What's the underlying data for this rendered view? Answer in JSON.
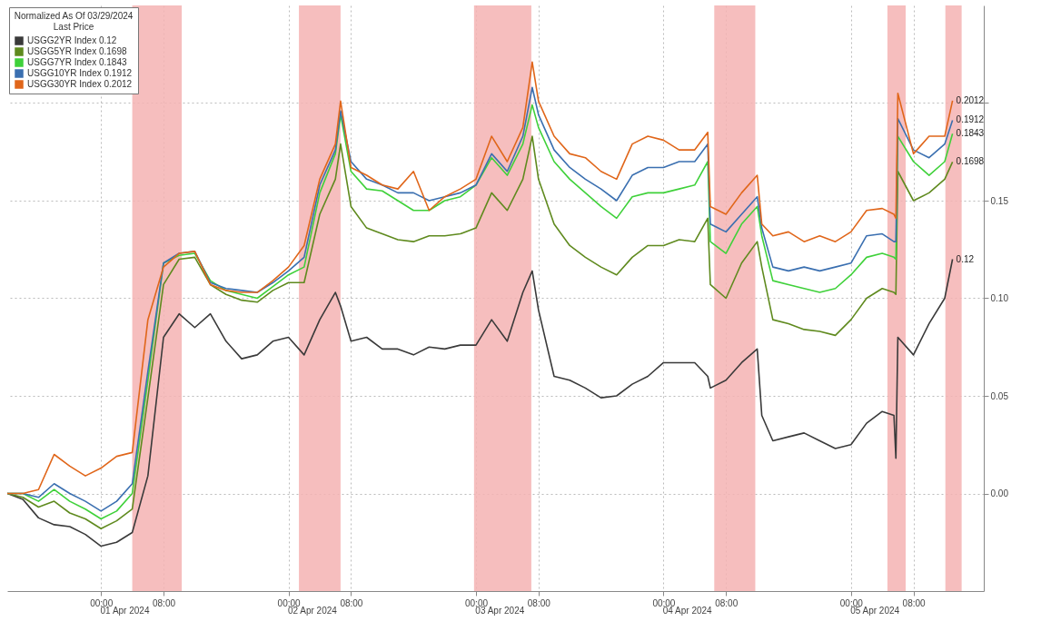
{
  "chart_data": {
    "type": "line",
    "legend_title": "Normalized As Of 03/29/2024\nLast Price",
    "legend": "top left",
    "grid": true,
    "x": [
      "2024-03-31T12:00",
      "2024-03-31T14:00",
      "2024-03-31T16:00",
      "2024-03-31T18:00",
      "2024-03-31T20:00",
      "2024-03-31T22:00",
      "2024-04-01T00:00",
      "2024-04-01T02:00",
      "2024-04-01T04:00",
      "2024-04-01T06:00",
      "2024-04-01T08:00",
      "2024-04-01T10:00",
      "2024-04-01T12:00",
      "2024-04-01T14:00",
      "2024-04-01T16:00",
      "2024-04-01T18:00",
      "2024-04-01T20:00",
      "2024-04-01T22:00",
      "2024-04-02T00:00",
      "2024-04-02T02:00",
      "2024-04-02T04:00",
      "2024-04-02T06:00",
      "2024-04-02T06:40",
      "2024-04-02T08:00",
      "2024-04-02T10:00",
      "2024-04-02T12:00",
      "2024-04-02T14:00",
      "2024-04-02T16:00",
      "2024-04-02T18:00",
      "2024-04-02T20:00",
      "2024-04-02T22:00",
      "2024-04-03T00:00",
      "2024-04-03T02:00",
      "2024-04-03T04:00",
      "2024-04-03T06:00",
      "2024-04-03T07:12",
      "2024-04-03T08:00",
      "2024-04-03T10:00",
      "2024-04-03T12:00",
      "2024-04-03T14:00",
      "2024-04-03T16:00",
      "2024-04-03T18:00",
      "2024-04-03T20:00",
      "2024-04-03T22:00",
      "2024-04-04T00:00",
      "2024-04-04T02:00",
      "2024-04-04T04:00",
      "2024-04-04T05:40",
      "2024-04-04T06:00",
      "2024-04-04T08:00",
      "2024-04-04T10:00",
      "2024-04-04T12:00",
      "2024-04-04T12:35",
      "2024-04-04T14:00",
      "2024-04-04T16:00",
      "2024-04-04T18:00",
      "2024-04-04T20:00",
      "2024-04-04T22:00",
      "2024-04-05T00:00",
      "2024-04-05T02:00",
      "2024-04-05T04:00",
      "2024-04-05T05:30",
      "2024-04-05T05:45",
      "2024-04-05T06:00",
      "2024-04-05T08:00",
      "2024-04-05T10:00",
      "2024-04-05T12:00",
      "2024-04-05T13:00"
    ],
    "series": [
      {
        "name": "USGG2YR Index 0.12",
        "color": "#3a3a3a",
        "values": [
          0,
          -0.003,
          -0.0125,
          -0.016,
          -0.017,
          -0.021,
          -0.027,
          -0.025,
          -0.02,
          0.009,
          0.08,
          0.092,
          0.085,
          0.092,
          0.078,
          0.069,
          0.071,
          0.078,
          0.08,
          0.071,
          0.089,
          0.103,
          0.096,
          0.078,
          0.08,
          0.074,
          0.074,
          0.071,
          0.075,
          0.074,
          0.076,
          0.076,
          0.089,
          0.078,
          0.103,
          0.114,
          0.094,
          0.06,
          0.058,
          0.054,
          0.049,
          0.05,
          0.056,
          0.06,
          0.067,
          0.067,
          0.067,
          0.06,
          0.054,
          0.058,
          0.067,
          0.074,
          0.04,
          0.027,
          0.029,
          0.031,
          0.027,
          0.023,
          0.025,
          0.036,
          0.042,
          0.04,
          0.018,
          0.08,
          0.071,
          0.087,
          0.1,
          0.12
        ],
        "value_labels": [
          null,
          null,
          null,
          null,
          null,
          null,
          null,
          null,
          null,
          null,
          null,
          null,
          null,
          null,
          null,
          null,
          null,
          null,
          null,
          null,
          null,
          null,
          null,
          null,
          null,
          null,
          null,
          null,
          null,
          null,
          null,
          null,
          null,
          null,
          null,
          null,
          null,
          null,
          null,
          null,
          null,
          null,
          null,
          null,
          null,
          null,
          null,
          null,
          null,
          null,
          null,
          null,
          null,
          null,
          null,
          null,
          null,
          null,
          null,
          null,
          null,
          null,
          null,
          null,
          null,
          null,
          null,
          "0.12"
        ]
      },
      {
        "name": "USGG5YR Index 0.1698",
        "color": "#5f8a1e",
        "values": [
          0,
          -0.002,
          -0.007,
          -0.004,
          -0.01,
          -0.013,
          -0.018,
          -0.014,
          -0.008,
          0.049,
          0.107,
          0.12,
          0.121,
          0.107,
          0.102,
          0.099,
          0.098,
          0.104,
          0.108,
          0.108,
          0.143,
          0.161,
          0.179,
          0.147,
          0.136,
          0.133,
          0.13,
          0.129,
          0.132,
          0.132,
          0.133,
          0.136,
          0.154,
          0.145,
          0.161,
          0.183,
          0.161,
          0.138,
          0.127,
          0.121,
          0.116,
          0.112,
          0.121,
          0.127,
          0.127,
          0.13,
          0.129,
          0.141,
          0.107,
          0.1,
          0.118,
          0.129,
          0.116,
          0.089,
          0.087,
          0.084,
          0.083,
          0.081,
          0.089,
          0.1,
          0.105,
          0.103,
          0.102,
          0.165,
          0.15,
          0.154,
          0.161,
          0.1698
        ],
        "value_labels": [
          null,
          null,
          null,
          null,
          null,
          null,
          null,
          null,
          null,
          null,
          null,
          null,
          null,
          null,
          null,
          null,
          null,
          null,
          null,
          null,
          null,
          null,
          null,
          null,
          null,
          null,
          null,
          null,
          null,
          null,
          null,
          null,
          null,
          null,
          null,
          null,
          null,
          null,
          null,
          null,
          null,
          null,
          null,
          null,
          null,
          null,
          null,
          null,
          null,
          null,
          null,
          null,
          null,
          null,
          null,
          null,
          null,
          null,
          null,
          null,
          null,
          null,
          null,
          null,
          null,
          null,
          null,
          "0.1698"
        ]
      },
      {
        "name": "USGG7YR Index 0.1843",
        "color": "#3fd13a",
        "values": [
          0,
          0,
          -0.004,
          0.002,
          -0.004,
          -0.008,
          -0.013,
          -0.009,
          0,
          0.058,
          0.118,
          0.122,
          0.123,
          0.109,
          0.104,
          0.102,
          0.1,
          0.106,
          0.112,
          0.116,
          0.154,
          0.174,
          0.194,
          0.165,
          0.156,
          0.155,
          0.15,
          0.145,
          0.145,
          0.15,
          0.152,
          0.158,
          0.172,
          0.163,
          0.179,
          0.199,
          0.1875,
          0.17,
          0.161,
          0.154,
          0.147,
          0.141,
          0.152,
          0.154,
          0.154,
          0.156,
          0.158,
          0.17,
          0.129,
          0.123,
          0.138,
          0.147,
          0.132,
          0.109,
          0.107,
          0.105,
          0.103,
          0.105,
          0.112,
          0.121,
          0.123,
          0.121,
          0.12,
          0.183,
          0.17,
          0.163,
          0.17,
          0.1843
        ],
        "value_labels": [
          null,
          null,
          null,
          null,
          null,
          null,
          null,
          null,
          null,
          null,
          null,
          null,
          null,
          null,
          null,
          null,
          null,
          null,
          null,
          null,
          null,
          null,
          null,
          null,
          null,
          null,
          null,
          null,
          null,
          null,
          null,
          null,
          null,
          null,
          null,
          null,
          null,
          null,
          null,
          null,
          null,
          null,
          null,
          null,
          null,
          null,
          null,
          null,
          null,
          null,
          null,
          null,
          null,
          null,
          null,
          null,
          null,
          null,
          null,
          null,
          null,
          null,
          null,
          null,
          null,
          null,
          null,
          "0.1843"
        ]
      },
      {
        "name": "USGG10YR Index 0.1912",
        "color": "#3a6fb0",
        "values": [
          0,
          0,
          -0.002,
          0.005,
          0,
          -0.004,
          -0.009,
          -0.004,
          0.005,
          0.0625,
          0.118,
          0.123,
          0.124,
          0.108,
          0.105,
          0.104,
          0.103,
          0.108,
          0.114,
          0.121,
          0.158,
          0.176,
          0.196,
          0.17,
          0.161,
          0.158,
          0.154,
          0.154,
          0.15,
          0.152,
          0.154,
          0.158,
          0.174,
          0.165,
          0.183,
          0.208,
          0.194,
          0.176,
          0.167,
          0.161,
          0.156,
          0.15,
          0.163,
          0.167,
          0.167,
          0.17,
          0.17,
          0.179,
          0.138,
          0.134,
          0.143,
          0.152,
          0.136,
          0.116,
          0.114,
          0.116,
          0.114,
          0.116,
          0.118,
          0.132,
          0.133,
          0.129,
          0.129,
          0.192,
          0.176,
          0.172,
          0.179,
          0.1912
        ],
        "value_labels": [
          null,
          null,
          null,
          null,
          null,
          null,
          null,
          null,
          null,
          null,
          null,
          null,
          null,
          null,
          null,
          null,
          null,
          null,
          null,
          null,
          null,
          null,
          null,
          null,
          null,
          null,
          null,
          null,
          null,
          null,
          null,
          null,
          null,
          null,
          null,
          null,
          null,
          null,
          null,
          null,
          null,
          null,
          null,
          null,
          null,
          null,
          null,
          null,
          null,
          null,
          null,
          null,
          null,
          null,
          null,
          null,
          null,
          null,
          null,
          null,
          null,
          null,
          null,
          null,
          null,
          null,
          null,
          "0.1912"
        ]
      },
      {
        "name": "USGG30YR Index 0.2012",
        "color": "#e0661a",
        "values": [
          0,
          0,
          0.002,
          0.02,
          0.014,
          0.009,
          0.013,
          0.019,
          0.021,
          0.089,
          0.116,
          0.123,
          0.124,
          0.107,
          0.104,
          0.103,
          0.103,
          0.109,
          0.116,
          0.127,
          0.161,
          0.179,
          0.201,
          0.167,
          0.163,
          0.158,
          0.156,
          0.165,
          0.145,
          0.152,
          0.156,
          0.161,
          0.183,
          0.17,
          0.1875,
          0.221,
          0.201,
          0.183,
          0.174,
          0.172,
          0.165,
          0.161,
          0.179,
          0.183,
          0.181,
          0.176,
          0.176,
          0.185,
          0.147,
          0.143,
          0.154,
          0.163,
          0.138,
          0.132,
          0.134,
          0.129,
          0.132,
          0.129,
          0.134,
          0.145,
          0.146,
          0.143,
          0.141,
          0.205,
          0.174,
          0.183,
          0.183,
          0.2012
        ],
        "value_labels": [
          null,
          null,
          null,
          null,
          null,
          null,
          null,
          null,
          null,
          null,
          null,
          null,
          null,
          null,
          null,
          null,
          null,
          null,
          null,
          null,
          null,
          null,
          null,
          null,
          null,
          null,
          null,
          null,
          null,
          null,
          null,
          null,
          null,
          null,
          null,
          null,
          null,
          null,
          null,
          null,
          null,
          null,
          null,
          null,
          null,
          null,
          null,
          null,
          null,
          null,
          null,
          null,
          null,
          null,
          null,
          null,
          null,
          null,
          null,
          null,
          null,
          null,
          null,
          null,
          null,
          null,
          null,
          "0.2012"
        ]
      }
    ],
    "xlim": [
      "2024-03-31T12:00",
      "2024-04-05T17:00"
    ],
    "xticks": [
      {
        "value": "2024-04-01T00:00",
        "label": "00:00"
      },
      {
        "value": "2024-04-01T08:00",
        "label": "08:00"
      },
      {
        "value": "2024-04-02T00:00",
        "label": "00:00"
      },
      {
        "value": "2024-04-02T08:00",
        "label": "08:00"
      },
      {
        "value": "2024-04-03T00:00",
        "label": "00:00"
      },
      {
        "value": "2024-04-03T08:00",
        "label": "08:00"
      },
      {
        "value": "2024-04-04T00:00",
        "label": "00:00"
      },
      {
        "value": "2024-04-04T08:00",
        "label": "08:00"
      },
      {
        "value": "2024-04-05T00:00",
        "label": "00:00"
      },
      {
        "value": "2024-04-05T08:00",
        "label": "08:00"
      }
    ],
    "x2lim": [
      "2024-03-31T12:00",
      "2024-04-05T17:00"
    ],
    "x2ticks": [
      {
        "value": "2024-04-01T03:00",
        "label": "01 Apr 2024"
      },
      {
        "value": "2024-04-02T03:00",
        "label": "02 Apr 2024"
      },
      {
        "value": "2024-04-03T03:00",
        "label": "03 Apr 2024"
      },
      {
        "value": "2024-04-04T03:00",
        "label": "04 Apr 2024"
      },
      {
        "value": "2024-04-05T03:00",
        "label": "05 Apr 2024"
      }
    ],
    "ylim": [
      -0.05,
      0.25
    ],
    "yticks": [
      {
        "value": 0,
        "label": "0.00"
      },
      {
        "value": 0.05,
        "label": "0.05"
      },
      {
        "value": 0.1,
        "label": "0.10"
      },
      {
        "value": 0.15,
        "label": "0.15"
      },
      {
        "value": 0.2,
        "label": null
      }
    ],
    "bands": [
      {
        "axis": "x",
        "from": "2024-04-01T04:00",
        "to": "2024-04-01T10:20",
        "color": "#f4b3b3"
      },
      {
        "axis": "x",
        "from": "2024-04-02T01:20",
        "to": "2024-04-02T06:40",
        "color": "#f4b3b3"
      },
      {
        "axis": "x",
        "from": "2024-04-02T23:45",
        "to": "2024-04-03T07:05",
        "color": "#f4b3b3"
      },
      {
        "axis": "x",
        "from": "2024-04-04T06:30",
        "to": "2024-04-04T11:45",
        "color": "#f4b3b3"
      },
      {
        "axis": "x",
        "from": "2024-04-05T04:40",
        "to": "2024-04-05T07:00",
        "color": "#f4b3b3"
      },
      {
        "axis": "x",
        "from": "2024-04-05T12:05",
        "to": "2024-04-05T14:10",
        "color": "#f4b3b3"
      }
    ]
  }
}
